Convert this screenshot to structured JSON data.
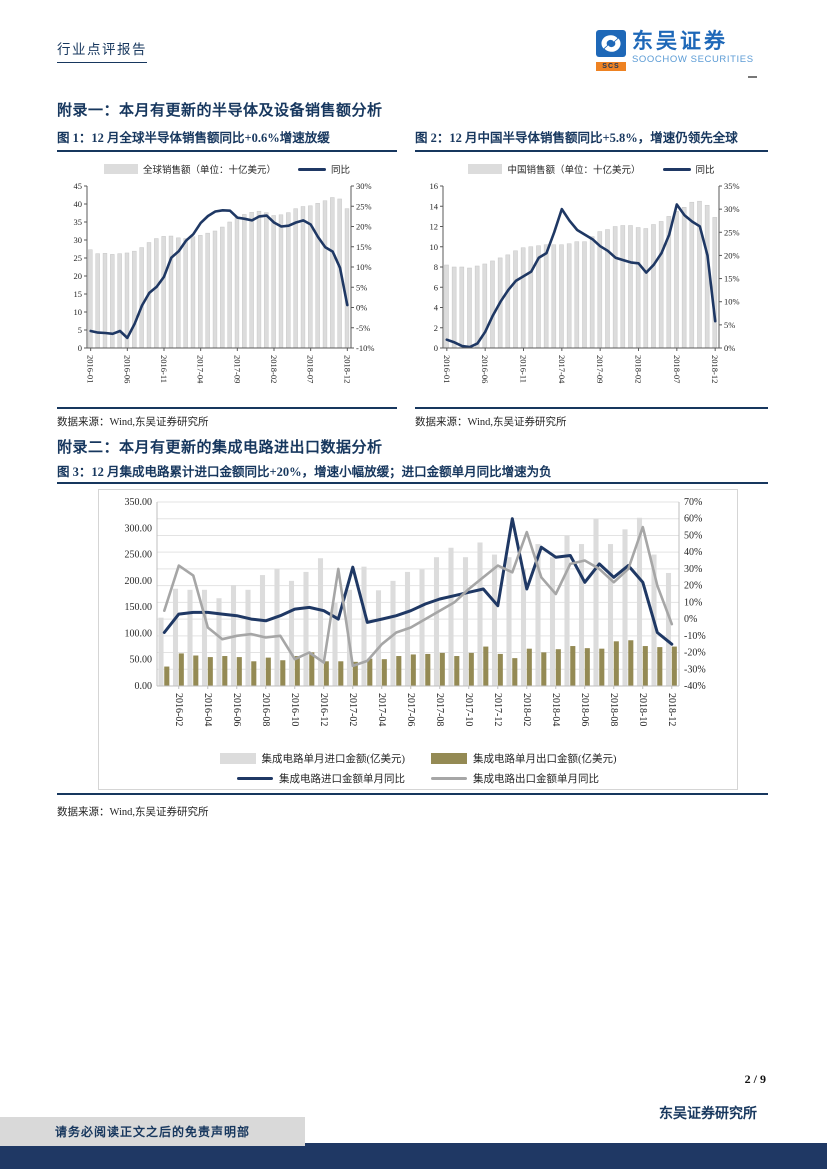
{
  "header": {
    "report_type": "行业点评报告",
    "logo_cn": "东吴证券",
    "logo_en": "SOOCHOW SECURITIES",
    "logo_abbr": "SCS"
  },
  "appendix1": {
    "heading": "附录一：本月有更新的半导体及设备销售额分析"
  },
  "appendix2": {
    "heading": "附录二：本月有更新的集成电路进出口数据分析"
  },
  "figures": [
    {
      "title": "图 1：12 月全球半导体销售额同比+0.6%增速放缓",
      "source": "数据来源：Wind,东吴证券研究所"
    },
    {
      "title": "图 2：12 月中国半导体销售额同比+5.8%，增速仍领先全球",
      "source": "数据来源：Wind,东吴证券研究所"
    },
    {
      "title": "图 3：12 月集成电路累计进口金额同比+20%，增速小幅放缓；进口金额单月同比增速为负",
      "source": "数据来源：Wind,东吴证券研究所"
    }
  ],
  "footer": {
    "page_number": "2 / 9",
    "institute": "东吴证券研究所",
    "disclaimer": "请务必阅读正文之后的免责声明部"
  },
  "colors": {
    "navy_text": "#17375E",
    "navy_line": "#1F3864",
    "bar_gray": "#DCDCDC",
    "bar_olive": "#948A54",
    "line_gray": "#A6A6A6",
    "footer_bar": "#1F3864",
    "logo_blue": "#1E68B8",
    "logo_light_blue": "#5B9BD5",
    "logo_orange": "#EE8222"
  },
  "chart_data": [
    {
      "id": "figure1",
      "type": "bar+line",
      "title": "图 1：12 月全球半导体销售额同比+0.6%增速放缓",
      "grid": false,
      "legend_position": "top",
      "categories": [
        "2016-01",
        "2016-02",
        "2016-03",
        "2016-04",
        "2016-05",
        "2016-06",
        "2016-07",
        "2016-08",
        "2016-09",
        "2016-10",
        "2016-11",
        "2016-12",
        "2017-01",
        "2017-02",
        "2017-03",
        "2017-04",
        "2017-05",
        "2017-06",
        "2017-07",
        "2017-08",
        "2017-09",
        "2017-10",
        "2017-11",
        "2017-12",
        "2018-01",
        "2018-02",
        "2018-03",
        "2018-04",
        "2018-05",
        "2018-06",
        "2018-07",
        "2018-08",
        "2018-09",
        "2018-10",
        "2018-11",
        "2018-12"
      ],
      "x_tick_indices": [
        0,
        5,
        10,
        15,
        20,
        25,
        30,
        35
      ],
      "left_axis": {
        "min": 0,
        "max": 45,
        "step": 5,
        "decimals": 0
      },
      "right_axis": {
        "min": -10,
        "max": 30,
        "step": 5,
        "suffix": "%"
      },
      "series": [
        {
          "name": "全球销售额（单位：十亿美元）",
          "kind": "bar",
          "axis": "left",
          "color": "#DCDCDC",
          "values": [
            27.3,
            26.2,
            26.3,
            26.0,
            26.2,
            26.4,
            26.9,
            27.9,
            29.3,
            30.4,
            31.0,
            31.1,
            30.6,
            30.4,
            30.9,
            31.3,
            31.9,
            32.5,
            33.6,
            35.0,
            36.3,
            37.1,
            37.7,
            38.0,
            37.6,
            36.8,
            37.0,
            37.6,
            38.7,
            39.3,
            39.5,
            40.2,
            40.9,
            41.8,
            41.4,
            38.7
          ]
        },
        {
          "name": "同比",
          "kind": "line",
          "axis": "right",
          "color": "#1F3864",
          "width": 2.6,
          "values": [
            -5.8,
            -6.2,
            -6.3,
            -6.5,
            -5.8,
            -7.5,
            -4.0,
            0.5,
            3.6,
            5.1,
            7.6,
            12.3,
            13.9,
            16.5,
            18.1,
            20.9,
            22.6,
            23.7,
            24.0,
            23.9,
            22.2,
            21.9,
            21.5,
            22.5,
            22.7,
            21.0,
            20.0,
            20.2,
            21.0,
            21.5,
            20.5,
            17.4,
            14.9,
            13.8,
            9.8,
            0.6
          ]
        }
      ]
    },
    {
      "id": "figure2",
      "type": "bar+line",
      "title": "图 2：12 月中国半导体销售额同比+5.8%，增速仍领先全球",
      "grid": false,
      "legend_position": "top",
      "categories": [
        "2016-01",
        "2016-02",
        "2016-03",
        "2016-04",
        "2016-05",
        "2016-06",
        "2016-07",
        "2016-08",
        "2016-09",
        "2016-10",
        "2016-11",
        "2016-12",
        "2017-01",
        "2017-02",
        "2017-03",
        "2017-04",
        "2017-05",
        "2017-06",
        "2017-07",
        "2017-08",
        "2017-09",
        "2017-10",
        "2017-11",
        "2017-12",
        "2018-01",
        "2018-02",
        "2018-03",
        "2018-04",
        "2018-05",
        "2018-06",
        "2018-07",
        "2018-08",
        "2018-09",
        "2018-10",
        "2018-11",
        "2018-12"
      ],
      "x_tick_indices": [
        0,
        5,
        10,
        15,
        20,
        25,
        30,
        35
      ],
      "left_axis": {
        "min": 0,
        "max": 16,
        "step": 2,
        "decimals": 0
      },
      "right_axis": {
        "min": 0,
        "max": 35,
        "step": 5,
        "suffix": "%"
      },
      "series": [
        {
          "name": "中国销售额（单位：十亿美元）",
          "kind": "bar",
          "axis": "left",
          "color": "#DCDCDC",
          "values": [
            8.2,
            8.0,
            8.0,
            7.9,
            8.1,
            8.3,
            8.6,
            8.9,
            9.2,
            9.6,
            9.9,
            10.0,
            10.1,
            10.2,
            10.2,
            10.2,
            10.3,
            10.5,
            10.5,
            11.0,
            11.5,
            11.7,
            12.0,
            12.1,
            12.1,
            11.9,
            11.8,
            12.2,
            12.5,
            13.0,
            13.5,
            13.9,
            14.4,
            14.5,
            14.1,
            12.9
          ]
        },
        {
          "name": "同比",
          "kind": "line",
          "axis": "right",
          "color": "#1F3864",
          "width": 2.6,
          "values": [
            1.8,
            1.2,
            0.4,
            0.2,
            1.0,
            3.5,
            7.0,
            10.0,
            12.5,
            14.5,
            15.5,
            16.5,
            19.5,
            20.5,
            25.0,
            30.0,
            27.5,
            25.5,
            24.5,
            23.5,
            22.0,
            21.0,
            19.5,
            19.0,
            18.5,
            18.3,
            16.3,
            18.0,
            20.5,
            24.5,
            31.0,
            28.7,
            27.3,
            26.3,
            20.0,
            5.8
          ]
        }
      ]
    },
    {
      "id": "figure3",
      "type": "bar+line",
      "title": "图 3：12 月集成电路累计进口金额同比+20%，增速小幅放缓；进口金额单月同比增速为负",
      "grid": true,
      "legend_position": "bottom",
      "categories": [
        "2016-01",
        "2016-02",
        "2016-03",
        "2016-04",
        "2016-05",
        "2016-06",
        "2016-07",
        "2016-08",
        "2016-09",
        "2016-10",
        "2016-11",
        "2016-12",
        "2017-01",
        "2017-02",
        "2017-03",
        "2017-04",
        "2017-05",
        "2017-06",
        "2017-07",
        "2017-08",
        "2017-09",
        "2017-10",
        "2017-11",
        "2017-12",
        "2018-01",
        "2018-02",
        "2018-03",
        "2018-04",
        "2018-05",
        "2018-06",
        "2018-07",
        "2018-08",
        "2018-09",
        "2018-10",
        "2018-11",
        "2018-12"
      ],
      "x_tick_indices": [
        1,
        3,
        5,
        7,
        9,
        11,
        13,
        15,
        17,
        19,
        21,
        23,
        25,
        27,
        29,
        31,
        33,
        35
      ],
      "left_axis": {
        "min": 0,
        "max": 350,
        "step": 50,
        "decimals": 2
      },
      "right_axis": {
        "min": -40,
        "max": 70,
        "step": 10,
        "suffix": "%"
      },
      "series": [
        {
          "name": "集成电路单月进口金额(亿美元)",
          "kind": "bar",
          "axis": "left",
          "color": "#DCDCDC",
          "values": [
            130,
            185,
            183,
            183,
            167,
            192,
            183,
            211,
            223,
            200,
            217,
            243,
            158,
            183,
            227,
            182,
            200,
            217,
            222,
            245,
            263,
            245,
            273,
            250,
            245,
            222,
            270,
            245,
            286,
            270,
            318,
            270,
            298,
            320,
            250,
            215
          ]
        },
        {
          "name": "集成电路单月出口金额(亿美元)",
          "kind": "bar",
          "axis": "left",
          "color": "#948A54",
          "values": [
            37,
            62,
            58,
            55,
            57,
            55,
            47,
            54,
            49,
            57,
            64,
            47,
            47,
            46,
            52,
            51,
            57,
            60,
            61,
            63,
            57,
            63,
            75,
            61,
            53,
            71,
            64,
            70,
            76,
            72,
            71,
            85,
            87,
            76,
            74,
            75
          ]
        },
        {
          "name": "集成电路进口金额单月同比",
          "kind": "line",
          "axis": "right",
          "color": "#1F3864",
          "width": 3,
          "values": [
            -8,
            3,
            4,
            4,
            3,
            2,
            0,
            -1,
            2,
            6,
            7,
            5,
            0,
            31,
            -2,
            0,
            2,
            5,
            9,
            12,
            14,
            16,
            18,
            8,
            60,
            18,
            43,
            37,
            38,
            22,
            33,
            25,
            32,
            22,
            -8,
            -15
          ]
        },
        {
          "name": "集成电路出口金额单月同比",
          "kind": "line",
          "axis": "right",
          "color": "#A6A6A6",
          "width": 2.6,
          "values": [
            5,
            32,
            26,
            -5,
            -12,
            -10,
            -9,
            -11,
            -10,
            -24,
            -20,
            -26,
            30,
            -28,
            -25,
            -15,
            -8,
            -5,
            0,
            5,
            10,
            18,
            25,
            32,
            28,
            52,
            25,
            15,
            33,
            35,
            30,
            22,
            30,
            55,
            20,
            -3
          ]
        }
      ]
    }
  ]
}
